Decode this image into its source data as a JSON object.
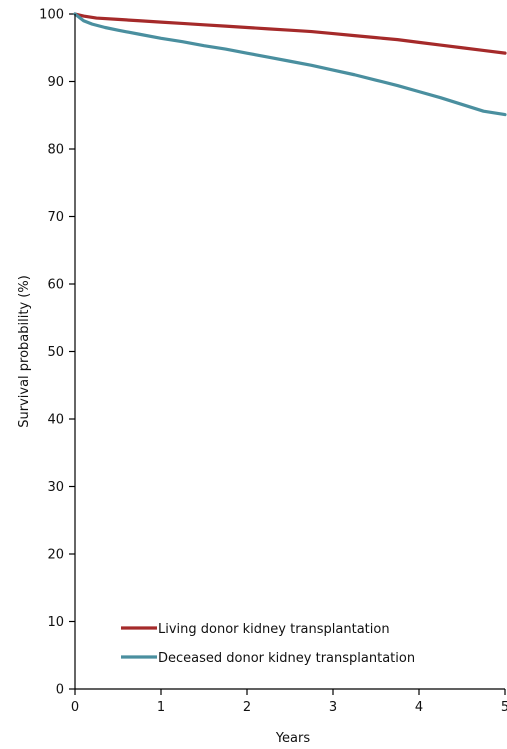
{
  "chart_data": {
    "type": "line",
    "title": "",
    "xlabel": "Years",
    "ylabel": "Survival probability (%)",
    "xlim": [
      0,
      5
    ],
    "ylim": [
      0,
      100
    ],
    "x_ticks": [
      0,
      1,
      2,
      3,
      4,
      5
    ],
    "y_ticks": [
      0,
      10,
      20,
      30,
      40,
      50,
      60,
      70,
      80,
      90,
      100
    ],
    "grid": false,
    "legend_position": "bottom-left",
    "series": [
      {
        "name": "Living donor kidney transplantation",
        "color": "#a52a2a",
        "x": [
          0,
          0.1,
          0.25,
          0.5,
          0.75,
          1,
          1.25,
          1.5,
          1.75,
          2,
          2.25,
          2.5,
          2.75,
          3,
          3.25,
          3.5,
          3.75,
          4,
          4.25,
          4.5,
          4.75,
          5
        ],
        "y": [
          100,
          99.7,
          99.4,
          99.2,
          99.0,
          98.8,
          98.6,
          98.4,
          98.2,
          98.0,
          97.8,
          97.6,
          97.4,
          97.1,
          96.8,
          96.5,
          96.2,
          95.8,
          95.4,
          95.0,
          94.6,
          94.2
        ]
      },
      {
        "name": "Deceased donor kidney transplantation",
        "color": "#4a8f9f",
        "x": [
          0,
          0.05,
          0.1,
          0.2,
          0.35,
          0.5,
          0.75,
          1,
          1.25,
          1.5,
          1.75,
          2,
          2.25,
          2.5,
          2.75,
          3,
          3.25,
          3.5,
          3.75,
          4,
          4.25,
          4.5,
          4.75,
          5
        ],
        "y": [
          100,
          99.5,
          99.0,
          98.5,
          98.0,
          97.6,
          97.0,
          96.4,
          95.9,
          95.3,
          94.8,
          94.2,
          93.6,
          93.0,
          92.4,
          91.7,
          91.0,
          90.2,
          89.4,
          88.5,
          87.6,
          86.6,
          85.6,
          85.1
        ]
      }
    ]
  }
}
